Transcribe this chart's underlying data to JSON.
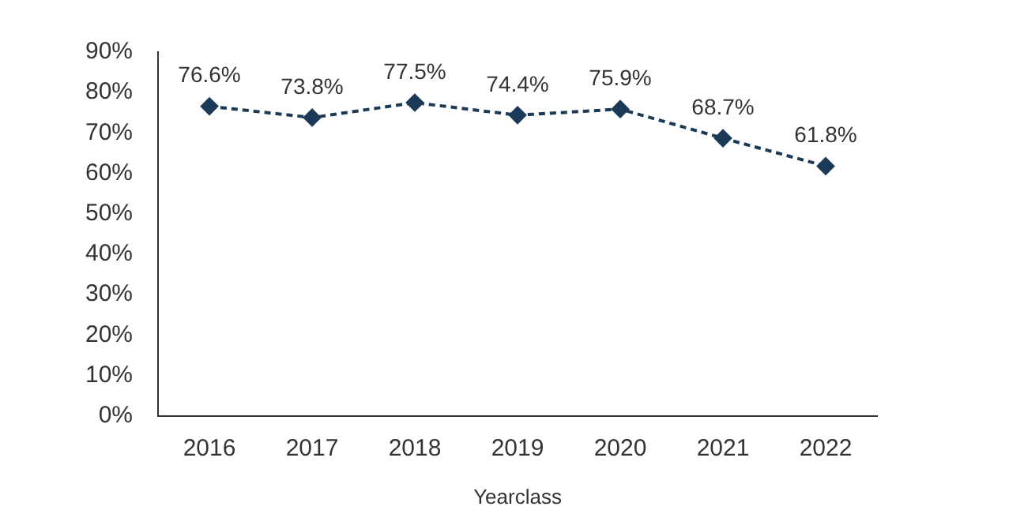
{
  "chart_data": {
    "type": "line",
    "xlabel": "Yearclass",
    "categories": [
      "2016",
      "2017",
      "2018",
      "2019",
      "2020",
      "2021",
      "2022"
    ],
    "series": [
      {
        "color": "#1b3a57",
        "values": [
          76.6,
          73.8,
          77.5,
          74.4,
          75.9,
          68.7,
          61.8
        ],
        "value_labels": [
          "76.6%",
          "73.8%",
          "77.5%",
          "74.4%",
          "75.9%",
          "68.7%",
          "61.8%"
        ]
      }
    ],
    "ylim": [
      0,
      90
    ],
    "yticks": [
      {
        "value": 0,
        "label": "0%"
      },
      {
        "value": 10,
        "label": "10%"
      },
      {
        "value": 20,
        "label": "20%"
      },
      {
        "value": 30,
        "label": "30%"
      },
      {
        "value": 40,
        "label": "40%"
      },
      {
        "value": 50,
        "label": "50%"
      },
      {
        "value": 60,
        "label": "60%"
      },
      {
        "value": 70,
        "label": "70%"
      },
      {
        "value": 80,
        "label": "80%"
      },
      {
        "value": 90,
        "label": "90%"
      }
    ],
    "grid": false,
    "legend": false,
    "marker": "diamond",
    "line_style": "dashed"
  }
}
